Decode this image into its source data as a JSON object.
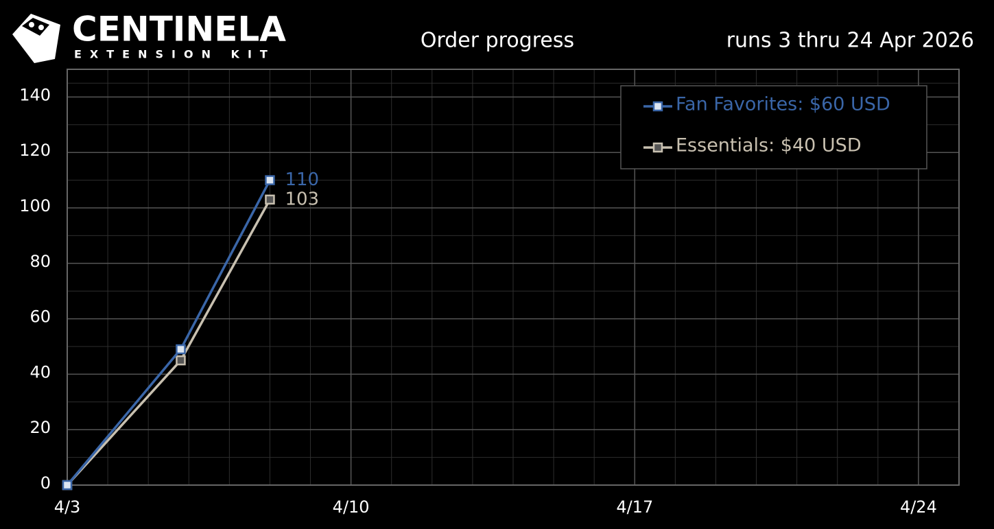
{
  "chart_data": {
    "type": "line",
    "brand": "CENTINELA",
    "brand_subtitle": "EXTENSION KIT",
    "title": "Order progress",
    "subtitle": "runs 3 thru 24 Apr 2026",
    "x": [
      3,
      5.8,
      8
    ],
    "series": [
      {
        "name": "Fan Favorites: $60 USD",
        "color": "#3a66a8",
        "marker_fill": "#dde6f2",
        "values": [
          0,
          49,
          110
        ],
        "value_labels": [
          null,
          null,
          "110"
        ]
      },
      {
        "name": "Essentials: $40 USD",
        "color": "#c8c0b0",
        "marker_fill": "#555555",
        "values": [
          0,
          45,
          103
        ],
        "value_labels": [
          null,
          null,
          "103"
        ]
      }
    ],
    "xlim": [
      3,
      25
    ],
    "xticks": [
      {
        "value": 3,
        "label": "4/3"
      },
      {
        "value": 10,
        "label": "4/10"
      },
      {
        "value": 17,
        "label": "4/17"
      },
      {
        "value": 24,
        "label": "4/24"
      }
    ],
    "ylim": [
      0,
      150
    ],
    "yticks": [
      0,
      20,
      40,
      60,
      80,
      100,
      120,
      140
    ],
    "grid": true,
    "legend": "upper right"
  }
}
